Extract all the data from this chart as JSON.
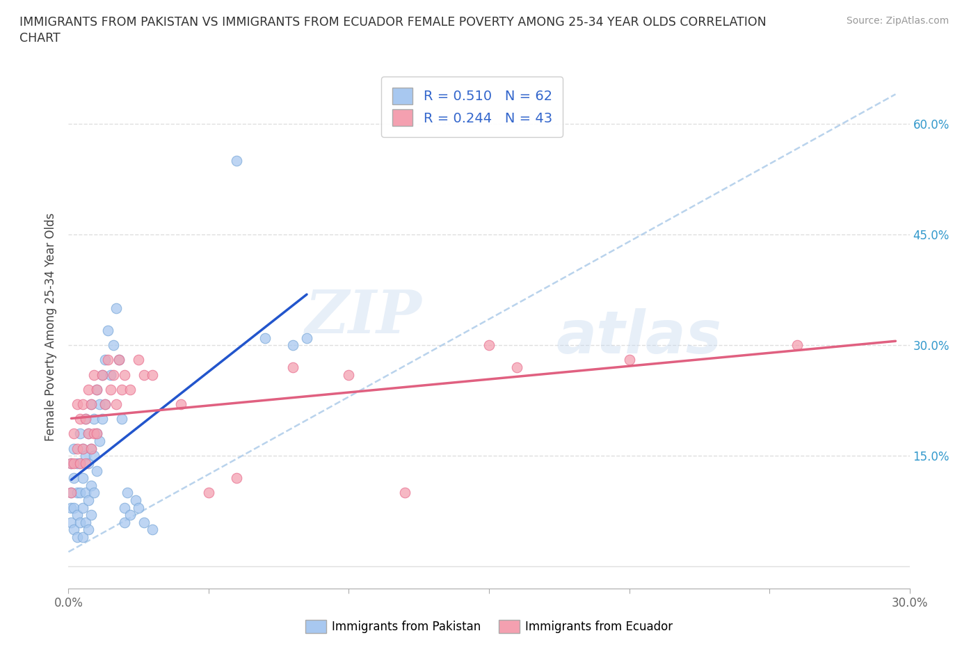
{
  "title_line1": "IMMIGRANTS FROM PAKISTAN VS IMMIGRANTS FROM ECUADOR FEMALE POVERTY AMONG 25-34 YEAR OLDS CORRELATION",
  "title_line2": "CHART",
  "source": "Source: ZipAtlas.com",
  "ylabel": "Female Poverty Among 25-34 Year Olds",
  "xlim": [
    0.0,
    0.3
  ],
  "ylim": [
    -0.03,
    0.68
  ],
  "xticks": [
    0.0,
    0.05,
    0.1,
    0.15,
    0.2,
    0.25,
    0.3
  ],
  "xticklabels": [
    "0.0%",
    "",
    "",
    "",
    "",
    "",
    "30.0%"
  ],
  "yticks": [
    0.0,
    0.15,
    0.3,
    0.45,
    0.6
  ],
  "ytick_right_labels": [
    "",
    "15.0%",
    "30.0%",
    "45.0%",
    "60.0%"
  ],
  "pakistan_R": 0.51,
  "pakistan_N": 62,
  "ecuador_R": 0.244,
  "ecuador_N": 43,
  "pakistan_color": "#a8c8f0",
  "ecuador_color": "#f4a0b0",
  "pakistan_edge": "#7aa8d8",
  "ecuador_edge": "#e87090",
  "trendline_pakistan": "#2255cc",
  "trendline_ecuador": "#e06080",
  "diagonal_color": "#a8c8e8",
  "legend_label_color": "#3366cc",
  "right_tick_color": "#3399cc",
  "pakistan_scatter": [
    [
      0.001,
      0.14
    ],
    [
      0.001,
      0.1
    ],
    [
      0.001,
      0.08
    ],
    [
      0.001,
      0.06
    ],
    [
      0.002,
      0.16
    ],
    [
      0.002,
      0.12
    ],
    [
      0.002,
      0.08
    ],
    [
      0.002,
      0.05
    ],
    [
      0.003,
      0.14
    ],
    [
      0.003,
      0.1
    ],
    [
      0.003,
      0.07
    ],
    [
      0.003,
      0.04
    ],
    [
      0.004,
      0.18
    ],
    [
      0.004,
      0.14
    ],
    [
      0.004,
      0.1
    ],
    [
      0.004,
      0.06
    ],
    [
      0.005,
      0.16
    ],
    [
      0.005,
      0.12
    ],
    [
      0.005,
      0.08
    ],
    [
      0.005,
      0.04
    ],
    [
      0.006,
      0.2
    ],
    [
      0.006,
      0.15
    ],
    [
      0.006,
      0.1
    ],
    [
      0.006,
      0.06
    ],
    [
      0.007,
      0.18
    ],
    [
      0.007,
      0.14
    ],
    [
      0.007,
      0.09
    ],
    [
      0.007,
      0.05
    ],
    [
      0.008,
      0.22
    ],
    [
      0.008,
      0.16
    ],
    [
      0.008,
      0.11
    ],
    [
      0.008,
      0.07
    ],
    [
      0.009,
      0.2
    ],
    [
      0.009,
      0.15
    ],
    [
      0.009,
      0.1
    ],
    [
      0.01,
      0.24
    ],
    [
      0.01,
      0.18
    ],
    [
      0.01,
      0.13
    ],
    [
      0.011,
      0.22
    ],
    [
      0.011,
      0.17
    ],
    [
      0.012,
      0.26
    ],
    [
      0.012,
      0.2
    ],
    [
      0.013,
      0.28
    ],
    [
      0.013,
      0.22
    ],
    [
      0.014,
      0.32
    ],
    [
      0.015,
      0.26
    ],
    [
      0.016,
      0.3
    ],
    [
      0.017,
      0.35
    ],
    [
      0.018,
      0.28
    ],
    [
      0.019,
      0.2
    ],
    [
      0.02,
      0.08
    ],
    [
      0.02,
      0.06
    ],
    [
      0.021,
      0.1
    ],
    [
      0.022,
      0.07
    ],
    [
      0.024,
      0.09
    ],
    [
      0.025,
      0.08
    ],
    [
      0.027,
      0.06
    ],
    [
      0.03,
      0.05
    ],
    [
      0.06,
      0.55
    ],
    [
      0.07,
      0.31
    ],
    [
      0.08,
      0.3
    ],
    [
      0.085,
      0.31
    ]
  ],
  "ecuador_scatter": [
    [
      0.001,
      0.14
    ],
    [
      0.001,
      0.1
    ],
    [
      0.002,
      0.18
    ],
    [
      0.002,
      0.14
    ],
    [
      0.003,
      0.22
    ],
    [
      0.003,
      0.16
    ],
    [
      0.004,
      0.2
    ],
    [
      0.004,
      0.14
    ],
    [
      0.005,
      0.22
    ],
    [
      0.005,
      0.16
    ],
    [
      0.006,
      0.2
    ],
    [
      0.006,
      0.14
    ],
    [
      0.007,
      0.24
    ],
    [
      0.007,
      0.18
    ],
    [
      0.008,
      0.22
    ],
    [
      0.008,
      0.16
    ],
    [
      0.009,
      0.26
    ],
    [
      0.009,
      0.18
    ],
    [
      0.01,
      0.24
    ],
    [
      0.01,
      0.18
    ],
    [
      0.012,
      0.26
    ],
    [
      0.013,
      0.22
    ],
    [
      0.014,
      0.28
    ],
    [
      0.015,
      0.24
    ],
    [
      0.016,
      0.26
    ],
    [
      0.017,
      0.22
    ],
    [
      0.018,
      0.28
    ],
    [
      0.019,
      0.24
    ],
    [
      0.02,
      0.26
    ],
    [
      0.022,
      0.24
    ],
    [
      0.025,
      0.28
    ],
    [
      0.027,
      0.26
    ],
    [
      0.03,
      0.26
    ],
    [
      0.04,
      0.22
    ],
    [
      0.05,
      0.1
    ],
    [
      0.06,
      0.12
    ],
    [
      0.08,
      0.27
    ],
    [
      0.1,
      0.26
    ],
    [
      0.12,
      0.1
    ],
    [
      0.15,
      0.3
    ],
    [
      0.16,
      0.27
    ],
    [
      0.2,
      0.28
    ],
    [
      0.26,
      0.3
    ]
  ],
  "watermark_zip": "ZIP",
  "watermark_atlas": "atlas",
  "background_color": "#ffffff",
  "grid_color": "#d8d8d8"
}
